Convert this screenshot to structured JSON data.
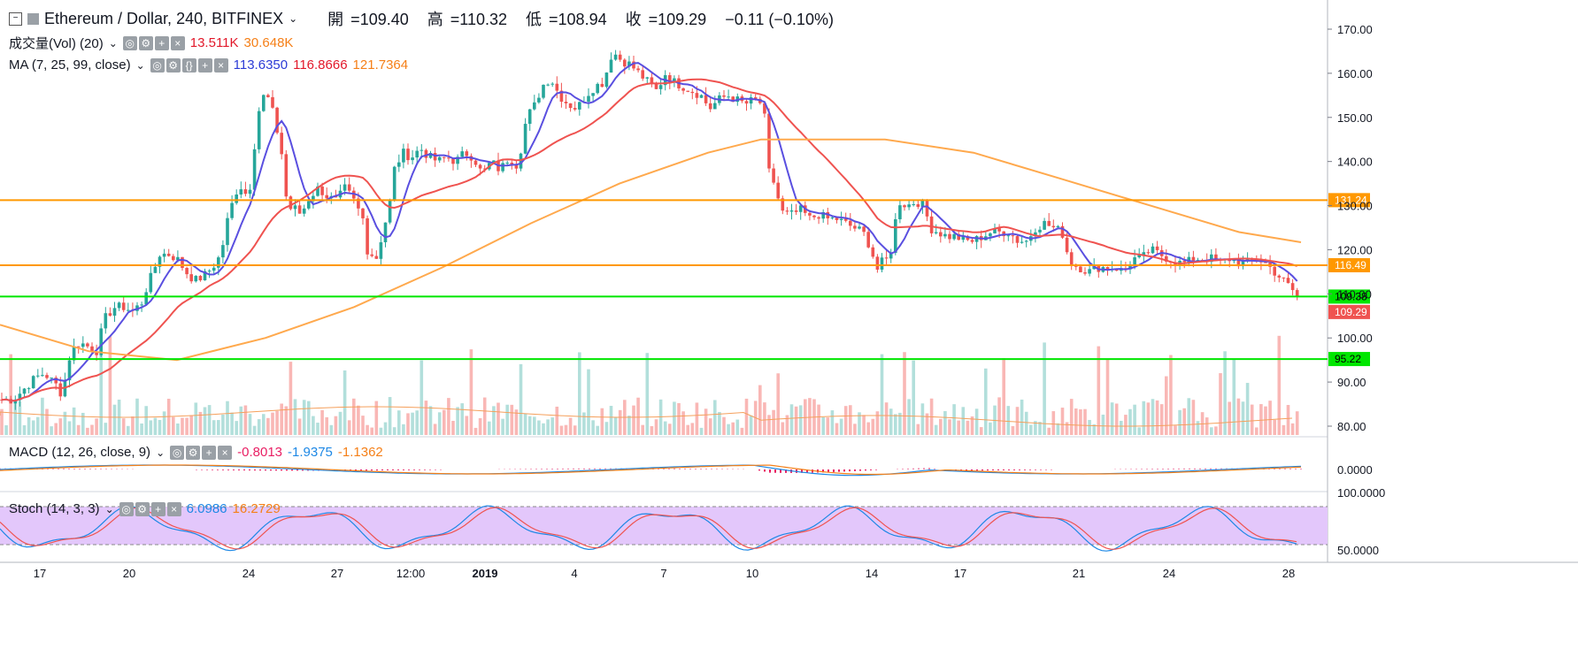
{
  "header": {
    "symbol": "Ethereum / Dollar, 240, BITFINEX",
    "ohlc": [
      {
        "label": "開",
        "value": "109.40"
      },
      {
        "label": "高",
        "value": "110.32"
      },
      {
        "label": "低",
        "value": "108.94"
      },
      {
        "label": "收",
        "value": "109.29"
      }
    ],
    "change": "−0.11 (−0.10%)"
  },
  "legends": {
    "volume": {
      "label": "成交量(Vol) (20)",
      "v1": "13.511K",
      "v2": "30.648K"
    },
    "ma": {
      "label": "MA (7, 25, 99, close)",
      "v1": "113.6350",
      "v2": "116.8666",
      "v3": "121.7364"
    },
    "macd": {
      "label": "MACD (12, 26, close, 9)",
      "v1": "-0.8013",
      "v2": "-1.9375",
      "v3": "-1.1362"
    },
    "stoch": {
      "label": "Stoch (14, 3, 3)",
      "v1": "6.0986",
      "v2": "16.2729"
    }
  },
  "colors": {
    "up": "#26a69a",
    "down": "#ef5350",
    "ma7": "#5a4fe0",
    "ma25": "#ef5350",
    "ma99": "#ffa94d",
    "hline_orange": "#ff9800",
    "hline_green": "#00e600",
    "stoch_fill": "#e3c7fb"
  },
  "chart_data": {
    "type": "candlestick",
    "price_axis_ticks": [
      "170.00",
      "160.00",
      "150.00",
      "140.00",
      "130.00",
      "120.00",
      "110.00",
      "100.00",
      "90.00",
      "80.00"
    ],
    "ylim": [
      78,
      174
    ],
    "x_ticks": [
      "17",
      "20",
      "24",
      "27",
      "12:00",
      "2019",
      "4",
      "7",
      "10",
      "14",
      "17",
      "21",
      "24",
      "28"
    ],
    "horizontal_lines": [
      {
        "value": 131.24,
        "label": "131.24",
        "color": "#ff9800"
      },
      {
        "value": 116.49,
        "label": "116.49",
        "color": "#ff9800"
      },
      {
        "value": 109.38,
        "label": "109.38",
        "color": "#00e600"
      },
      {
        "value": 95.22,
        "label": "95.22",
        "color": "#00e600"
      }
    ],
    "last_price": {
      "value": 109.29,
      "label": "109.29"
    },
    "close_path": [
      [
        0,
        86
      ],
      [
        15,
        86
      ],
      [
        25,
        88
      ],
      [
        30,
        89
      ],
      [
        40,
        91
      ],
      [
        50,
        92
      ],
      [
        65,
        89
      ],
      [
        70,
        87
      ],
      [
        80,
        97
      ],
      [
        90,
        99
      ],
      [
        100,
        98
      ],
      [
        110,
        97
      ],
      [
        115,
        102
      ],
      [
        120,
        105
      ],
      [
        130,
        107
      ],
      [
        140,
        107
      ],
      [
        150,
        106
      ],
      [
        160,
        108
      ],
      [
        165,
        111
      ],
      [
        175,
        116
      ],
      [
        180,
        119
      ],
      [
        190,
        119
      ],
      [
        200,
        118
      ],
      [
        210,
        115
      ],
      [
        220,
        113
      ],
      [
        230,
        114
      ],
      [
        240,
        116
      ],
      [
        250,
        119
      ],
      [
        255,
        125
      ],
      [
        260,
        129
      ],
      [
        270,
        135
      ],
      [
        280,
        132
      ],
      [
        285,
        137
      ],
      [
        290,
        150
      ],
      [
        300,
        156
      ],
      [
        310,
        150
      ],
      [
        320,
        140
      ],
      [
        325,
        128
      ],
      [
        330,
        130
      ],
      [
        340,
        128
      ],
      [
        350,
        132
      ],
      [
        360,
        134
      ],
      [
        370,
        132
      ],
      [
        380,
        131
      ],
      [
        390,
        134
      ],
      [
        400,
        131
      ],
      [
        410,
        127
      ],
      [
        415,
        120
      ],
      [
        425,
        118
      ],
      [
        430,
        122
      ],
      [
        440,
        130
      ],
      [
        445,
        138
      ],
      [
        455,
        142
      ],
      [
        465,
        141
      ],
      [
        475,
        143
      ],
      [
        485,
        141
      ],
      [
        495,
        140
      ],
      [
        505,
        141
      ],
      [
        515,
        140
      ],
      [
        525,
        142
      ],
      [
        535,
        141
      ],
      [
        545,
        137
      ],
      [
        555,
        140
      ],
      [
        565,
        138
      ],
      [
        575,
        141
      ],
      [
        585,
        139
      ],
      [
        595,
        150
      ],
      [
        605,
        153
      ],
      [
        612,
        157
      ],
      [
        622,
        159
      ],
      [
        632,
        155
      ],
      [
        642,
        153
      ],
      [
        652,
        152
      ],
      [
        662,
        155
      ],
      [
        672,
        157
      ],
      [
        682,
        158
      ],
      [
        692,
        165
      ],
      [
        702,
        163
      ],
      [
        712,
        162
      ],
      [
        722,
        160
      ],
      [
        732,
        158
      ],
      [
        742,
        156
      ],
      [
        752,
        160
      ],
      [
        762,
        158
      ],
      [
        772,
        157
      ],
      [
        782,
        156
      ],
      [
        792,
        155
      ],
      [
        802,
        152
      ],
      [
        812,
        154
      ],
      [
        822,
        155
      ],
      [
        832,
        154
      ],
      [
        842,
        153
      ],
      [
        852,
        154
      ],
      [
        862,
        153
      ],
      [
        865,
        148
      ],
      [
        868,
        138
      ],
      [
        875,
        135
      ],
      [
        880,
        131
      ],
      [
        885,
        128
      ],
      [
        895,
        128
      ],
      [
        905,
        129
      ],
      [
        915,
        127
      ],
      [
        925,
        128
      ],
      [
        935,
        127
      ],
      [
        945,
        127
      ],
      [
        955,
        126
      ],
      [
        965,
        125
      ],
      [
        975,
        124
      ],
      [
        985,
        120
      ],
      [
        990,
        115
      ],
      [
        995,
        117
      ],
      [
        1005,
        118
      ],
      [
        1010,
        124
      ],
      [
        1015,
        131
      ],
      [
        1025,
        130
      ],
      [
        1035,
        131
      ],
      [
        1045,
        130
      ],
      [
        1050,
        125
      ],
      [
        1060,
        124
      ],
      [
        1070,
        123
      ],
      [
        1080,
        123
      ],
      [
        1090,
        122
      ],
      [
        1100,
        122
      ],
      [
        1110,
        123
      ],
      [
        1120,
        124
      ],
      [
        1130,
        124
      ],
      [
        1140,
        124
      ],
      [
        1150,
        122
      ],
      [
        1160,
        122
      ],
      [
        1170,
        125
      ],
      [
        1180,
        126
      ],
      [
        1190,
        125
      ],
      [
        1200,
        124
      ],
      [
        1205,
        120
      ],
      [
        1210,
        117
      ],
      [
        1220,
        116
      ],
      [
        1230,
        115
      ],
      [
        1240,
        116
      ],
      [
        1250,
        116
      ],
      [
        1260,
        116
      ],
      [
        1270,
        115
      ],
      [
        1280,
        118
      ],
      [
        1290,
        118
      ],
      [
        1300,
        120
      ],
      [
        1310,
        119
      ],
      [
        1320,
        118
      ],
      [
        1330,
        117
      ],
      [
        1340,
        117
      ],
      [
        1350,
        118
      ],
      [
        1360,
        118
      ],
      [
        1370,
        118
      ],
      [
        1380,
        117
      ],
      [
        1390,
        118
      ],
      [
        1400,
        117
      ],
      [
        1410,
        117
      ],
      [
        1420,
        118
      ],
      [
        1430,
        117
      ],
      [
        1440,
        115
      ],
      [
        1450,
        113
      ],
      [
        1460,
        111
      ],
      [
        1465,
        109.3
      ]
    ]
  }
}
